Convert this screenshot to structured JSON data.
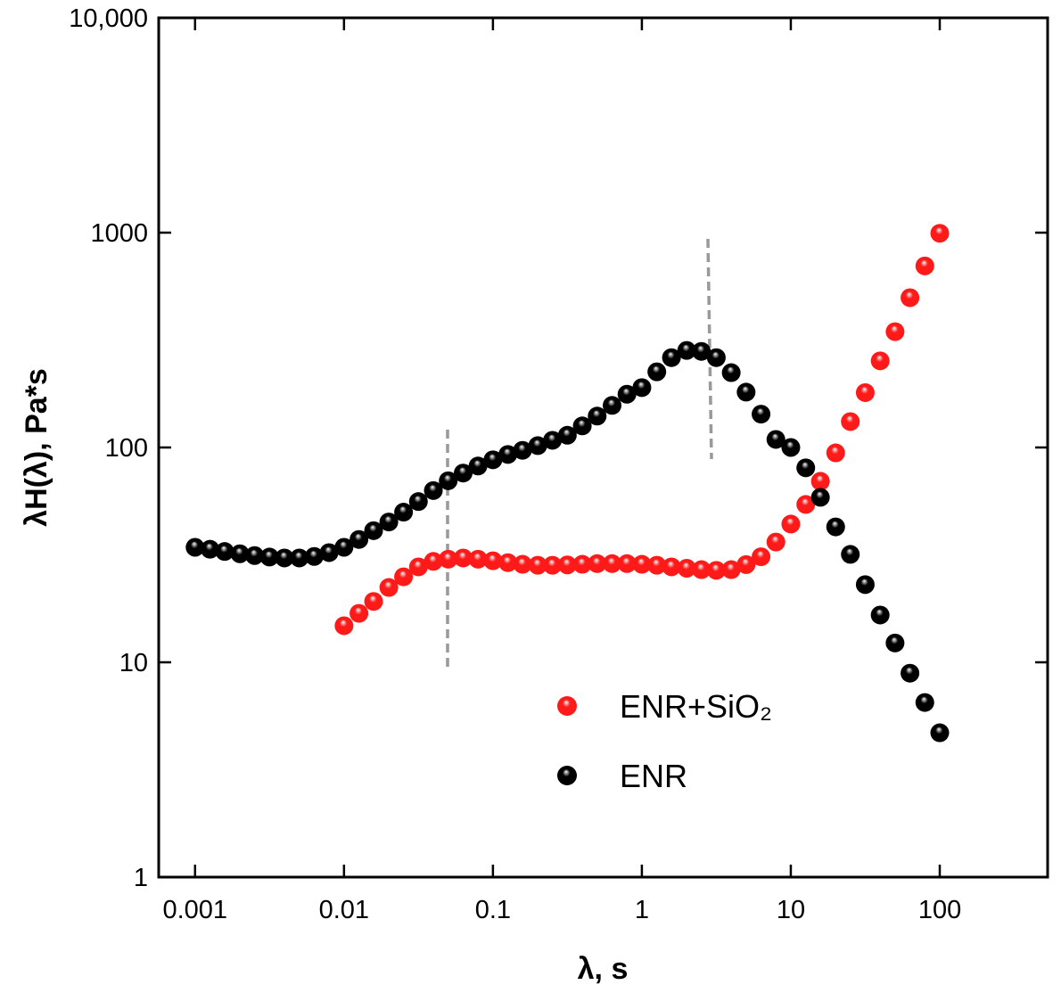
{
  "chart_data": {
    "type": "scatter",
    "x_label": "λ, s",
    "y_label": "λH(λ), Pa*s",
    "xscale": "log",
    "yscale": "log",
    "xlim": [
      0.00057,
      530
    ],
    "ylim": [
      1,
      10000
    ],
    "xticks": [
      0.001,
      0.01,
      0.1,
      1,
      10,
      100
    ],
    "yticks": [
      1,
      10,
      100,
      1000,
      {
        "value": 10000,
        "label": "10,000"
      }
    ],
    "series": [
      {
        "name": "ENR+SiO₂",
        "color": "#ff1a1a",
        "x": [
          0.01,
          0.0126,
          0.0158,
          0.02,
          0.0251,
          0.0316,
          0.0398,
          0.0501,
          0.0631,
          0.0794,
          0.1,
          0.126,
          0.158,
          0.2,
          0.251,
          0.316,
          0.398,
          0.501,
          0.631,
          0.794,
          1,
          1.26,
          1.58,
          2,
          2.51,
          3.16,
          3.98,
          5.01,
          6.31,
          7.94,
          10,
          12.6,
          15.8,
          20,
          25.1,
          31.6,
          39.8,
          50.1,
          63.1,
          79.4,
          100
        ],
        "values": [
          14.8,
          16.9,
          19.2,
          22.3,
          25,
          27.8,
          29.5,
          30.2,
          30.6,
          30.2,
          29.7,
          29.1,
          28.6,
          28.3,
          28.3,
          28.4,
          28.6,
          28.8,
          28.8,
          28.8,
          28.6,
          28.3,
          27.8,
          27.4,
          27,
          26.8,
          27,
          28.5,
          31,
          36.3,
          44,
          54.3,
          69.6,
          94.4,
          132,
          180,
          253,
          346,
          498,
          700,
          993
        ]
      },
      {
        "name": "ENR",
        "color": "#000000",
        "x": [
          0.001,
          0.00126,
          0.00158,
          0.002,
          0.00251,
          0.00316,
          0.00398,
          0.00501,
          0.00631,
          0.00794,
          0.01,
          0.0126,
          0.0158,
          0.02,
          0.0251,
          0.0316,
          0.0398,
          0.0501,
          0.0631,
          0.0794,
          0.1,
          0.126,
          0.158,
          0.2,
          0.251,
          0.316,
          0.398,
          0.501,
          0.631,
          0.794,
          1,
          1.26,
          1.58,
          2,
          2.51,
          3.16,
          3.98,
          5.01,
          6.31,
          7.94,
          10,
          12.6,
          15.8,
          20,
          25.1,
          31.6,
          39.8,
          50.1,
          63.1,
          79.4,
          100
        ],
        "values": [
          34.3,
          33.6,
          32.8,
          32,
          31.4,
          30.9,
          30.6,
          30.6,
          31.1,
          32.4,
          34.3,
          37.3,
          41,
          45,
          50,
          56,
          63,
          70,
          76,
          82,
          87.6,
          92.8,
          97,
          102,
          108,
          114,
          126,
          140,
          157,
          177,
          190,
          225,
          262,
          283,
          280,
          262,
          223,
          181,
          143,
          109,
          100,
          80.4,
          58.6,
          42.7,
          31.8,
          23,
          16.6,
          12.3,
          8.9,
          6.5,
          4.7
        ]
      }
    ]
  }
}
